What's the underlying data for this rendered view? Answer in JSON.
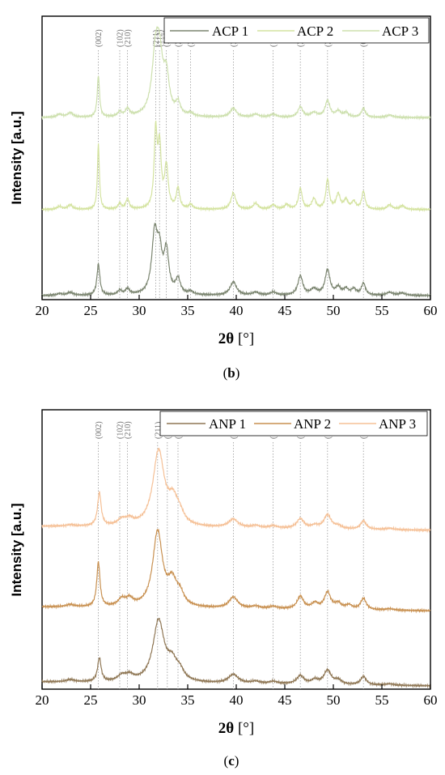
{
  "chart_data": [
    {
      "type": "line",
      "panel_caption": {
        "open": "(",
        "letter": "b",
        "close": ")"
      },
      "xlabel": {
        "symbol": "2θ",
        "unit": " [°]"
      },
      "ylabel": "Intensity [a.u.]",
      "xlim": [
        20,
        60
      ],
      "xticks": [
        "20",
        "25",
        "30",
        "35",
        "40",
        "45",
        "50",
        "55",
        "60"
      ],
      "reference_lines": [
        {
          "label": "(002)",
          "x": 25.8
        },
        {
          "label": "(102)",
          "x": 28.0
        },
        {
          "label": "(210)",
          "x": 28.8
        },
        {
          "label": "(211)",
          "x": 31.7
        },
        {
          "label": "(112)",
          "x": 32.1
        },
        {
          "label": "(300)",
          "x": 32.8
        },
        {
          "label": "(202)",
          "x": 34.0
        },
        {
          "label": "(301)",
          "x": 35.3
        },
        {
          "label": "(310)",
          "x": 39.7
        },
        {
          "label": "(113)",
          "x": 43.8
        },
        {
          "label": "(222)",
          "x": 46.6
        },
        {
          "label": "(213)",
          "x": 49.4
        },
        {
          "label": "(004)",
          "x": 53.1
        }
      ],
      "series": [
        {
          "name": "ACP 1",
          "color": "#7b8570",
          "offset": 0,
          "baseline": 0.8,
          "peaks": [
            [
              21.8,
              0.6,
              0.35
            ],
            [
              22.9,
              1.0,
              0.35
            ],
            [
              25.8,
              10.5,
              0.18
            ],
            [
              28.0,
              1.5,
              0.25
            ],
            [
              28.8,
              2.0,
              0.25
            ],
            [
              31.6,
              20.0,
              0.35
            ],
            [
              32.1,
              12.0,
              0.3
            ],
            [
              32.8,
              14.0,
              0.3
            ],
            [
              34.0,
              5.0,
              0.3
            ],
            [
              35.3,
              1.0,
              0.3
            ],
            [
              39.7,
              4.5,
              0.4
            ],
            [
              42.0,
              1.0,
              0.4
            ],
            [
              43.8,
              1.0,
              0.4
            ],
            [
              46.6,
              6.5,
              0.3
            ],
            [
              48.0,
              2.0,
              0.4
            ],
            [
              49.4,
              8.5,
              0.3
            ],
            [
              50.5,
              2.5,
              0.3
            ],
            [
              51.3,
              2.0,
              0.3
            ],
            [
              52.1,
              2.0,
              0.3
            ],
            [
              53.1,
              4.0,
              0.25
            ],
            [
              55.8,
              1.0,
              0.4
            ],
            [
              57.1,
              0.8,
              0.4
            ]
          ]
        },
        {
          "name": "ACP 2",
          "color": "#d4e3a0",
          "offset": 29,
          "baseline": 0.8,
          "peaks": [
            [
              21.8,
              1.0,
              0.3
            ],
            [
              22.9,
              1.5,
              0.3
            ],
            [
              25.8,
              22.0,
              0.12
            ],
            [
              28.0,
              2.0,
              0.2
            ],
            [
              28.8,
              3.5,
              0.2
            ],
            [
              31.7,
              25.0,
              0.18
            ],
            [
              32.1,
              20.0,
              0.2
            ],
            [
              32.8,
              14.0,
              0.22
            ],
            [
              34.0,
              7.0,
              0.2
            ],
            [
              35.3,
              1.5,
              0.25
            ],
            [
              39.7,
              5.5,
              0.3
            ],
            [
              42.0,
              2.0,
              0.3
            ],
            [
              43.8,
              1.5,
              0.3
            ],
            [
              45.2,
              1.5,
              0.3
            ],
            [
              46.6,
              7.0,
              0.22
            ],
            [
              48.0,
              3.5,
              0.25
            ],
            [
              49.4,
              10.0,
              0.2
            ],
            [
              50.5,
              5.0,
              0.25
            ],
            [
              51.3,
              3.0,
              0.25
            ],
            [
              52.1,
              2.5,
              0.25
            ],
            [
              53.1,
              6.0,
              0.2
            ],
            [
              55.8,
              1.5,
              0.3
            ],
            [
              57.1,
              1.2,
              0.3
            ]
          ]
        },
        {
          "name": "ACP 3",
          "color": "#cde0ae",
          "offset": 60,
          "baseline": 0.8,
          "peaks": [
            [
              21.8,
              1.0,
              0.35
            ],
            [
              22.9,
              1.5,
              0.35
            ],
            [
              25.8,
              14.0,
              0.14
            ],
            [
              28.0,
              1.5,
              0.25
            ],
            [
              28.8,
              2.5,
              0.25
            ],
            [
              31.7,
              20.0,
              0.45
            ],
            [
              32.1,
              15.0,
              0.4
            ],
            [
              32.8,
              12.0,
              0.35
            ],
            [
              34.0,
              4.0,
              0.3
            ],
            [
              35.3,
              1.0,
              0.3
            ],
            [
              39.7,
              3.0,
              0.4
            ],
            [
              42.0,
              1.0,
              0.4
            ],
            [
              43.8,
              1.0,
              0.4
            ],
            [
              46.6,
              3.5,
              0.3
            ],
            [
              48.0,
              1.5,
              0.4
            ],
            [
              49.4,
              5.5,
              0.3
            ],
            [
              50.5,
              2.0,
              0.3
            ],
            [
              51.3,
              1.5,
              0.3
            ],
            [
              53.1,
              3.0,
              0.25
            ],
            [
              55.8,
              0.8,
              0.4
            ]
          ]
        }
      ],
      "y_range": [
        0,
        95
      ],
      "legend_position": "top-right"
    },
    {
      "type": "line",
      "panel_caption": {
        "open": "(",
        "letter": "c",
        "close": ")"
      },
      "xlabel": {
        "symbol": "2θ",
        "unit": " [°]"
      },
      "ylabel": "Intensity [a.u.]",
      "xlim": [
        20,
        60
      ],
      "xticks": [
        "20",
        "25",
        "30",
        "35",
        "40",
        "45",
        "50",
        "55",
        "60"
      ],
      "reference_lines": [
        {
          "label": "(002)",
          "x": 25.8
        },
        {
          "label": "(102)",
          "x": 28.0
        },
        {
          "label": "(210)",
          "x": 28.8
        },
        {
          "label": "(211)",
          "x": 31.9
        },
        {
          "label": "(300)",
          "x": 32.9
        },
        {
          "label": "(202)",
          "x": 34.0
        },
        {
          "label": "(310)",
          "x": 39.7
        },
        {
          "label": "(113)",
          "x": 43.8
        },
        {
          "label": "(222)",
          "x": 46.6
        },
        {
          "label": "(213)",
          "x": 49.4
        },
        {
          "label": "(004)",
          "x": 53.1
        }
      ],
      "series": [
        {
          "name": "ANP 1",
          "color": "#8f7755",
          "offset": 0,
          "baseline": 2.0,
          "slope": -0.035,
          "peaks": [
            [
              22.9,
              0.8,
              0.5
            ],
            [
              25.9,
              8.5,
              0.22
            ],
            [
              28.2,
              2.0,
              0.5
            ],
            [
              29.0,
              2.0,
              0.5
            ],
            [
              32.0,
              22.0,
              0.7
            ],
            [
              33.4,
              6.0,
              0.6
            ],
            [
              34.2,
              3.0,
              0.5
            ],
            [
              39.7,
              3.2,
              0.6
            ],
            [
              42.0,
              0.8,
              0.5
            ],
            [
              43.8,
              0.8,
              0.5
            ],
            [
              46.6,
              3.0,
              0.45
            ],
            [
              48.1,
              1.5,
              0.4
            ],
            [
              49.4,
              5.0,
              0.45
            ],
            [
              50.5,
              1.5,
              0.4
            ],
            [
              53.1,
              3.0,
              0.35
            ],
            [
              55.8,
              0.5,
              0.5
            ]
          ]
        },
        {
          "name": "ANP 2",
          "color": "#c89050",
          "offset": 27,
          "baseline": 2.0,
          "slope": -0.035,
          "peaks": [
            [
              22.9,
              0.8,
              0.5
            ],
            [
              25.8,
              16.0,
              0.2
            ],
            [
              28.2,
              2.5,
              0.45
            ],
            [
              29.0,
              2.5,
              0.45
            ],
            [
              31.9,
              27.0,
              0.6
            ],
            [
              33.4,
              8.0,
              0.55
            ],
            [
              34.2,
              4.0,
              0.5
            ],
            [
              39.7,
              4.0,
              0.55
            ],
            [
              42.0,
              0.8,
              0.5
            ],
            [
              43.8,
              0.8,
              0.5
            ],
            [
              46.6,
              4.5,
              0.4
            ],
            [
              48.1,
              2.0,
              0.4
            ],
            [
              49.4,
              6.0,
              0.4
            ],
            [
              50.5,
              2.0,
              0.4
            ],
            [
              51.6,
              1.5,
              0.4
            ],
            [
              53.1,
              4.0,
              0.35
            ],
            [
              55.8,
              0.5,
              0.5
            ]
          ]
        },
        {
          "name": "ANP 3",
          "color": "#f5c096",
          "offset": 56,
          "baseline": 2.0,
          "slope": -0.035,
          "peaks": [
            [
              22.9,
              0.5,
              0.5
            ],
            [
              25.9,
              12.0,
              0.22
            ],
            [
              28.2,
              2.0,
              0.5
            ],
            [
              29.0,
              2.0,
              0.5
            ],
            [
              32.0,
              27.0,
              0.7
            ],
            [
              33.5,
              8.0,
              0.6
            ],
            [
              34.2,
              3.0,
              0.5
            ],
            [
              39.7,
              3.0,
              0.6
            ],
            [
              42.0,
              0.8,
              0.5
            ],
            [
              43.8,
              0.8,
              0.5
            ],
            [
              46.6,
              3.5,
              0.45
            ],
            [
              48.1,
              1.0,
              0.4
            ],
            [
              49.4,
              5.0,
              0.45
            ],
            [
              50.5,
              1.0,
              0.4
            ],
            [
              53.1,
              3.0,
              0.35
            ],
            [
              55.8,
              0.5,
              0.5
            ]
          ]
        }
      ],
      "y_range": [
        0,
        100
      ],
      "legend_position": "top-right"
    }
  ]
}
